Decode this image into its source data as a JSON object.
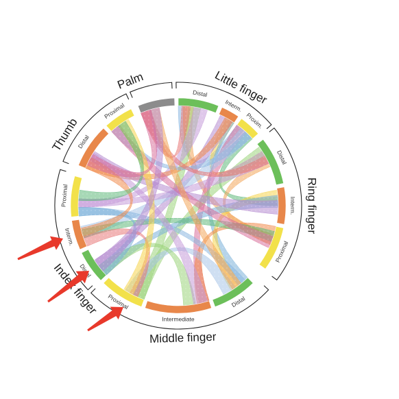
{
  "diagram": {
    "groups": [
      {
        "id": "palm",
        "label": "Palm",
        "color": "#8c8c8c"
      },
      {
        "id": "little",
        "label": "Little finger",
        "color": "#3b7bbf"
      },
      {
        "id": "ring",
        "label": "Ring finger",
        "color": "#e05a5a"
      },
      {
        "id": "middle",
        "label": "Middle finger",
        "color": "#f29a3c"
      },
      {
        "id": "index",
        "label": "Index finger",
        "color": "#8a5cb8"
      },
      {
        "id": "thumb",
        "label": "Thumb",
        "color": "#6cbf5a"
      }
    ],
    "segments": [
      {
        "group": "little",
        "label": "Distal",
        "color": "#6cbf5a"
      },
      {
        "group": "little",
        "label": "Interm.",
        "color": "#e8874a"
      },
      {
        "group": "little",
        "label": "Proxim.",
        "color": "#f2e14a"
      },
      {
        "group": "ring",
        "label": "Distal",
        "color": "#6cbf5a"
      },
      {
        "group": "ring",
        "label": "Interm.",
        "color": "#e8874a"
      },
      {
        "group": "ring",
        "label": "Proximal",
        "color": "#f2e14a"
      },
      {
        "group": "middle",
        "label": "Distal",
        "color": "#6cbf5a"
      },
      {
        "group": "middle",
        "label": "Intermediate",
        "color": "#e8874a"
      },
      {
        "group": "middle",
        "label": "Proximal",
        "color": "#f2e14a"
      },
      {
        "group": "index",
        "label": "Distal",
        "color": "#6cbf5a"
      },
      {
        "group": "index",
        "label": "Interm.",
        "color": "#e8874a"
      },
      {
        "group": "index",
        "label": "Proximal",
        "color": "#f2e14a"
      },
      {
        "group": "thumb",
        "label": "Distal",
        "color": "#e8874a"
      },
      {
        "group": "thumb",
        "label": "Proximal",
        "color": "#f2e14a"
      },
      {
        "group": "palm",
        "label": "",
        "color": "#8c8c8c"
      }
    ],
    "ribbon_colors": [
      "#8ab6e0",
      "#f2a65a",
      "#9bd47a",
      "#c49bd8",
      "#e87878",
      "#f5d34a",
      "#7ab0d8",
      "#b58bd0",
      "#f08a4b",
      "#5fb87a",
      "#d86f9a",
      "#a8c4e8"
    ],
    "arrows": {
      "count": 3,
      "color": "#e8392b"
    }
  }
}
